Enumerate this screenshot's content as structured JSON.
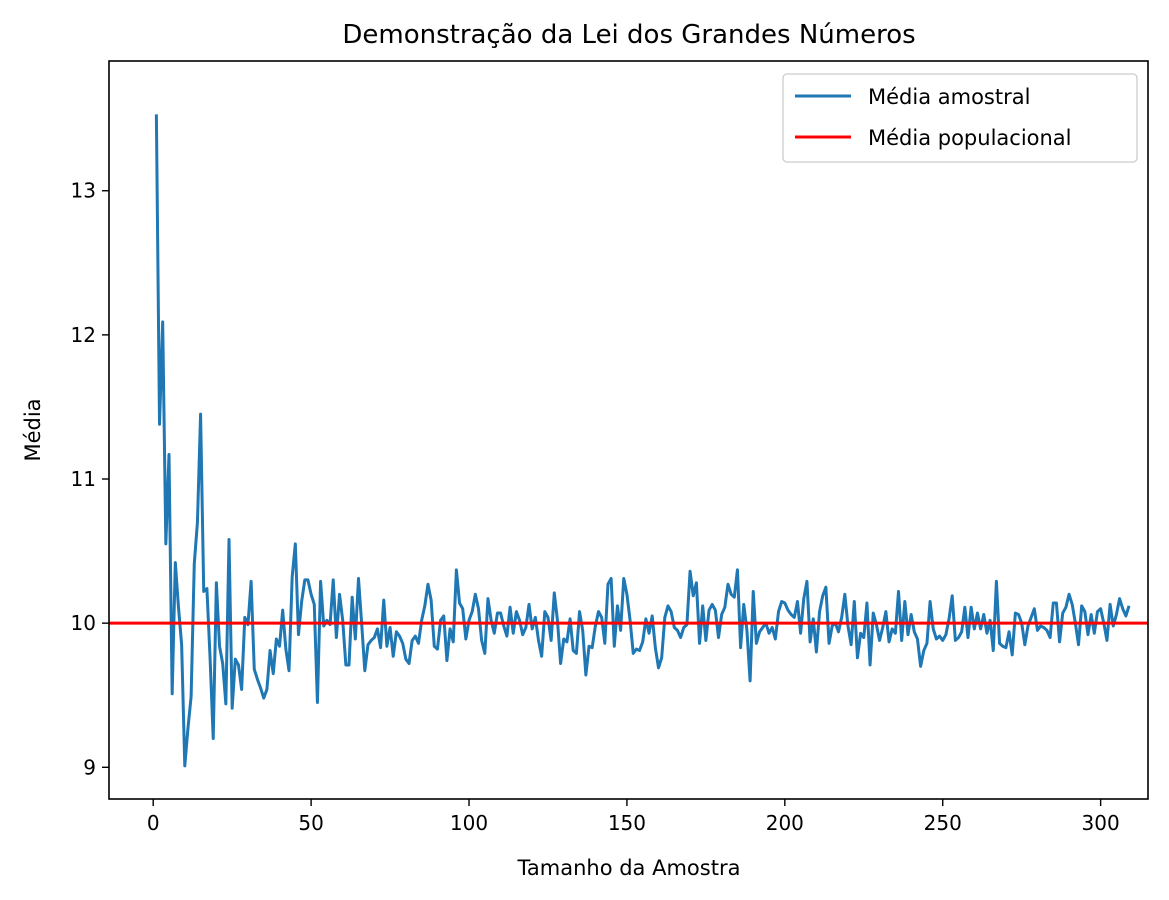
{
  "chart_data": {
    "type": "line",
    "title": "Demonstração da Lei dos Grandes Números",
    "xlabel": "Tamanho da Amostra",
    "ylabel": "Média",
    "xlim": [
      -14,
      315
    ],
    "ylim": [
      8.78,
      13.9
    ],
    "xticks": [
      0,
      50,
      100,
      150,
      200,
      250,
      300
    ],
    "yticks": [
      9,
      10,
      11,
      12,
      13
    ],
    "grid": false,
    "legend_position": "top-right",
    "series": [
      {
        "name": "Média amostral",
        "color": "#1f77b4",
        "x_start": 1,
        "x_step": 1,
        "values": [
          13.53,
          11.38,
          12.09,
          10.55,
          11.17,
          9.51,
          10.42,
          10.11,
          9.85,
          9.01,
          9.27,
          9.49,
          10.41,
          10.7,
          11.45,
          10.22,
          10.24,
          9.76,
          9.2,
          10.28,
          9.84,
          9.72,
          9.44,
          10.58,
          9.41,
          9.75,
          9.71,
          9.54,
          10.04,
          9.99,
          10.29,
          9.68,
          9.61,
          9.55,
          9.48,
          9.54,
          9.81,
          9.65,
          9.89,
          9.84,
          10.09,
          9.82,
          9.67,
          10.32,
          10.55,
          9.92,
          10.15,
          10.3,
          10.3,
          10.2,
          10.13,
          9.45,
          10.29,
          9.98,
          10.02,
          9.99,
          10.3,
          9.9,
          10.2,
          10.02,
          9.71,
          9.71,
          10.18,
          9.89,
          10.31,
          10.0,
          9.67,
          9.85,
          9.88,
          9.9,
          9.96,
          9.83,
          10.16,
          9.84,
          9.97,
          9.77,
          9.94,
          9.91,
          9.86,
          9.75,
          9.72,
          9.88,
          9.91,
          9.86,
          10.02,
          10.12,
          10.27,
          10.16,
          9.84,
          9.82,
          10.02,
          10.05,
          9.74,
          9.96,
          9.87,
          10.37,
          10.14,
          10.1,
          9.89,
          10.02,
          10.08,
          10.2,
          10.1,
          9.88,
          9.79,
          10.17,
          10.02,
          9.93,
          10.07,
          10.07,
          9.98,
          9.91,
          10.11,
          9.93,
          10.08,
          10.02,
          9.92,
          9.97,
          10.13,
          9.96,
          10.04,
          9.88,
          9.77,
          10.08,
          10.04,
          9.88,
          10.21,
          10.02,
          9.72,
          9.89,
          9.87,
          10.03,
          9.81,
          9.79,
          10.08,
          9.95,
          9.64,
          9.84,
          9.83,
          9.98,
          10.08,
          10.04,
          9.86,
          10.27,
          10.31,
          9.84,
          10.12,
          9.95,
          10.31,
          10.2,
          10.02,
          9.79,
          9.82,
          9.81,
          9.87,
          10.03,
          9.93,
          10.05,
          9.83,
          9.69,
          9.76,
          10.04,
          10.12,
          10.08,
          9.97,
          9.95,
          9.9,
          9.97,
          9.99,
          10.36,
          10.19,
          10.28,
          9.86,
          10.12,
          9.88,
          10.09,
          10.13,
          10.09,
          9.9,
          10.06,
          10.11,
          10.27,
          10.2,
          10.18,
          10.37,
          9.83,
          10.13,
          9.95,
          9.6,
          10.22,
          9.86,
          9.94,
          9.97,
          10.0,
          9.93,
          9.97,
          9.89,
          10.08,
          10.15,
          10.14,
          10.09,
          10.06,
          10.04,
          10.15,
          9.93,
          10.17,
          10.29,
          9.87,
          10.03,
          9.8,
          10.08,
          10.19,
          10.25,
          9.86,
          9.98,
          10.0,
          9.94,
          10.04,
          10.2,
          9.98,
          9.85,
          10.15,
          9.76,
          9.93,
          9.9,
          10.14,
          9.71,
          10.07,
          9.99,
          9.88,
          9.97,
          10.08,
          9.87,
          9.96,
          9.93,
          10.22,
          9.88,
          10.15,
          9.92,
          10.06,
          9.94,
          9.89,
          9.7,
          9.81,
          9.86,
          10.15,
          9.96,
          9.89,
          9.91,
          9.88,
          9.92,
          10.03,
          10.19,
          9.88,
          9.9,
          9.94,
          10.11,
          9.9,
          10.11,
          9.96,
          10.07,
          9.96,
          10.06,
          9.93,
          10.02,
          9.81,
          10.29,
          9.86,
          9.84,
          9.83,
          9.94,
          9.78,
          10.07,
          10.06,
          10.0,
          9.85,
          9.98,
          10.04,
          10.1,
          9.95,
          9.98,
          9.97,
          9.95,
          9.9,
          10.14,
          10.14,
          9.87,
          10.07,
          10.11,
          10.2,
          10.13,
          10.0,
          9.85,
          10.12,
          10.08,
          9.92,
          10.06,
          9.93,
          10.08,
          10.1,
          10.0,
          9.88,
          10.13,
          9.98,
          10.06,
          10.17,
          10.1,
          10.05,
          10.12
        ]
      },
      {
        "name": "Média populacional",
        "color": "#ff0000",
        "y": 10.0
      }
    ]
  }
}
